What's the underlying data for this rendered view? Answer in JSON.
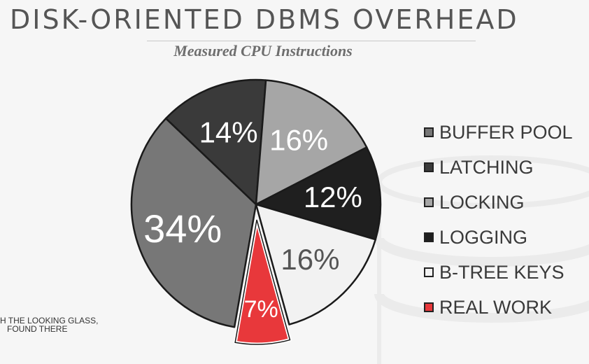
{
  "title": "DISK-ORIENTED DBMS OVERHEAD",
  "subtitle": "Measured CPU Instructions",
  "footnote": {
    "line1": "H THE LOOKING GLASS,",
    "line2": "FOUND THERE"
  },
  "chart_data": {
    "type": "pie",
    "title": "DISK-ORIENTED DBMS OVERHEAD",
    "subtitle": "Measured CPU Instructions",
    "legend_position": "right",
    "slices": [
      {
        "label": "BUFFER POOL",
        "value": 34,
        "data_label": "34%",
        "color": "#777777",
        "text_color": "#ffffff"
      },
      {
        "label": "LATCHING",
        "value": 14,
        "data_label": "14%",
        "color": "#3a3a3a",
        "text_color": "#ffffff"
      },
      {
        "label": "LOCKING",
        "value": 16,
        "data_label": "16%",
        "color": "#a6a6a6",
        "text_color": "#ffffff"
      },
      {
        "label": "LOGGING",
        "value": 12,
        "data_label": "12%",
        "color": "#1f1f1f",
        "text_color": "#ffffff"
      },
      {
        "label": "B-TREE KEYS",
        "value": 16,
        "data_label": "16%",
        "color": "#f2f2f2",
        "text_color": "#555555"
      },
      {
        "label": "REAL WORK",
        "value": 7,
        "data_label": "7%",
        "color": "#e8383b",
        "text_color": "#ffffff",
        "exploded": true
      }
    ]
  }
}
